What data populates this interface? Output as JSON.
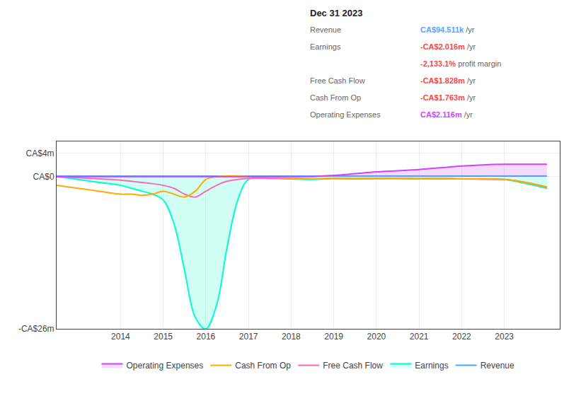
{
  "chart_data": {
    "type": "line",
    "x": [
      2012.5,
      2013,
      2013.5,
      2014,
      2014.25,
      2014.5,
      2014.75,
      2015.0,
      2015.25,
      2015.5,
      2015.75,
      2016.0,
      2016.25,
      2016.5,
      2016.75,
      2017.0,
      2017.5,
      2018.0,
      2018.5,
      2019.0,
      2019.5,
      2020.0,
      2020.5,
      2021.0,
      2021.5,
      2022.0,
      2022.5,
      2023.0,
      2023.5,
      2024.0
    ],
    "series": [
      {
        "name": "Revenue",
        "color": "#4da6ff",
        "values": [
          0.09,
          0.09,
          0.09,
          0.09,
          0.09,
          0.09,
          0.09,
          0.09,
          0.09,
          0.09,
          0.09,
          0.09,
          0.09,
          0.09,
          0.09,
          0.09,
          0.09,
          0.09,
          0.09,
          0.09,
          0.09,
          0.09,
          0.09,
          0.09,
          0.09,
          0.09,
          0.09,
          0.09,
          0.09,
          0.09
        ]
      },
      {
        "name": "Earnings",
        "color": "#00ffcc",
        "values": [
          0.0,
          -0.5,
          -1.0,
          -1.5,
          -2.0,
          -2.5,
          -3.0,
          -4.0,
          -8.0,
          -16.0,
          -24.0,
          -26.0,
          -22.0,
          -12.0,
          -4.0,
          -0.5,
          -0.3,
          -0.4,
          -0.5,
          -0.3,
          -0.4,
          -0.3,
          -0.3,
          -0.4,
          -0.3,
          -0.4,
          -0.4,
          -0.5,
          -1.2,
          -2.0
        ]
      },
      {
        "name": "Free Cash Flow",
        "color": "#ff69b4",
        "values": [
          0.0,
          -0.2,
          -0.4,
          -0.6,
          -0.8,
          -1.0,
          -1.2,
          -1.5,
          -2.0,
          -3.0,
          -3.5,
          -2.5,
          -1.5,
          -0.8,
          -0.5,
          -0.3,
          -0.3,
          -0.35,
          -0.4,
          -0.35,
          -0.35,
          -0.35,
          -0.35,
          -0.35,
          -0.4,
          -0.4,
          -0.45,
          -0.5,
          -1.0,
          -1.828
        ]
      },
      {
        "name": "Cash From Op",
        "color": "#ffaa00",
        "values": [
          -1.5,
          -2.0,
          -2.5,
          -3.0,
          -3.0,
          -3.2,
          -3.0,
          -2.5,
          -3.0,
          -3.5,
          -2.5,
          -0.5,
          0.0,
          0.1,
          0.1,
          0.0,
          -0.1,
          -0.3,
          -0.4,
          -0.3,
          -0.35,
          -0.35,
          -0.3,
          -0.35,
          -0.35,
          -0.4,
          -0.4,
          -0.5,
          -1.0,
          -1.763
        ]
      },
      {
        "name": "Operating Expenses",
        "color": "#cc44ff",
        "values": [
          0.0,
          0.0,
          0.0,
          0.0,
          0.0,
          0.0,
          0.0,
          0.0,
          0.0,
          0.0,
          0.0,
          0.0,
          0.0,
          0.0,
          0.0,
          0.0,
          0.0,
          0.0,
          0.0,
          0.2,
          0.5,
          0.8,
          1.0,
          1.2,
          1.5,
          1.8,
          2.0,
          2.1,
          2.116,
          2.116
        ]
      }
    ],
    "xlim": [
      2012.5,
      2024.3
    ],
    "xticks": [
      2014,
      2015,
      2016,
      2017,
      2018,
      2019,
      2020,
      2021,
      2022,
      2023
    ],
    "ylim": [
      -26,
      6
    ],
    "yticks": [
      {
        "value": 4,
        "label": "CA$4m"
      },
      {
        "value": 0,
        "label": "CA$0"
      },
      {
        "value": -26,
        "label": "-CA$26m"
      }
    ],
    "grid": true,
    "legend": "bottom",
    "annotations": [
      {
        "text": "Dec 31 2023"
      },
      {
        "label": "Revenue",
        "text": "CA$94.511k",
        "unit": "/yr",
        "color": "#4da6ff"
      },
      {
        "label": "Earnings",
        "text": "-CA$2.016m",
        "unit": "/yr",
        "color": "#ff4444"
      },
      {
        "text": "-2,133.1%",
        "unit": "profit margin",
        "color": "#ff4444"
      },
      {
        "label": "Free Cash Flow",
        "text": "-CA$1.828m",
        "unit": "/yr",
        "color": "#ff4444"
      },
      {
        "label": "Cash From Op",
        "text": "-CA$1.763m",
        "unit": "/yr",
        "color": "#ff4444"
      },
      {
        "label": "Operating Expenses",
        "text": "CA$2.116m",
        "unit": "/yr",
        "color": "#cc44ff"
      }
    ]
  }
}
